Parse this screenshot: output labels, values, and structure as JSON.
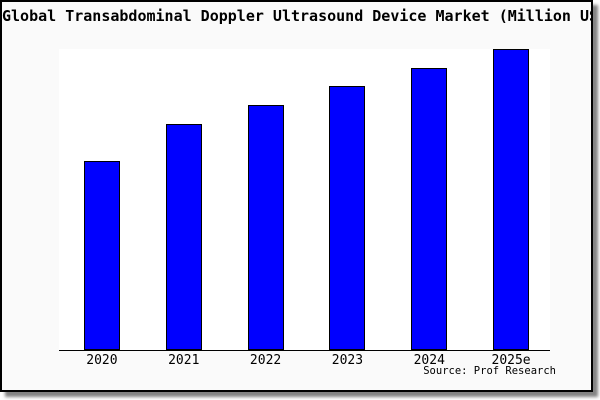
{
  "chart_data": {
    "type": "bar",
    "title": "Global Transabdominal Doppler Ultrasound Device Market (Million USD)",
    "categories": [
      "2020",
      "2021",
      "2022",
      "2023",
      "2024",
      "2025e"
    ],
    "values": [
      62.8,
      75.2,
      81.4,
      87.7,
      93.7,
      100
    ],
    "values_note": "relative index estimated from bar heights; no y-axis scale is shown (2025e = 100)",
    "ylim": [
      0,
      100.4
    ],
    "xlabel": "",
    "ylabel": "",
    "grid": false,
    "legend": null,
    "source": "Source: Prof Research"
  },
  "colors": {
    "bar_fill": "#0000ff",
    "bar_edge": "#000000",
    "plot_background": "#ffffff",
    "figure_background": "#fafafa",
    "frame_border": "#000000",
    "axis_line": "#000000",
    "text": "#000000",
    "shadow": "#5a5a5a"
  }
}
